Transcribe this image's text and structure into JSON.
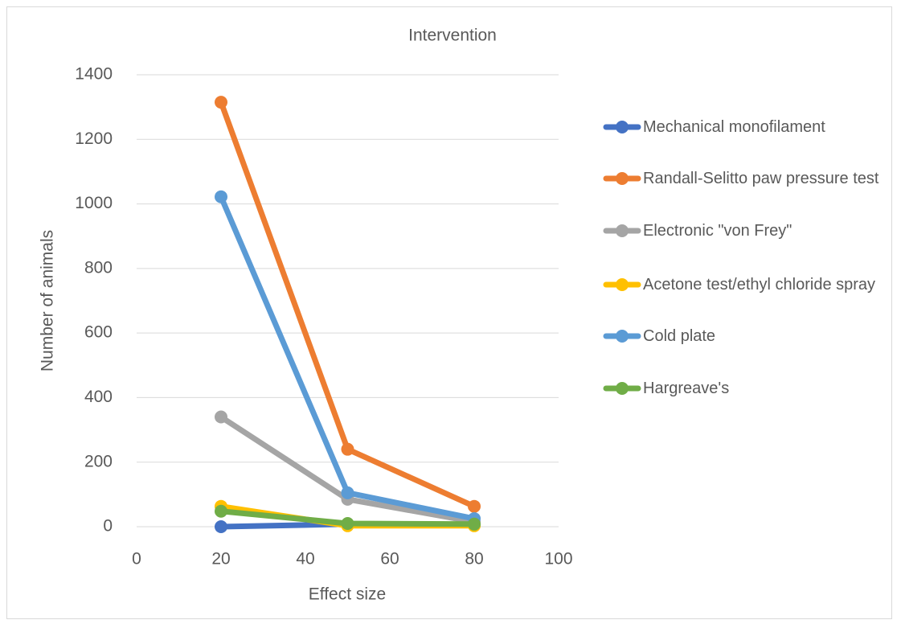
{
  "chart_data": {
    "type": "line",
    "title": "Intervention",
    "x_label": "Effect size",
    "y_label": "Number of animals",
    "x": [
      20,
      50,
      80
    ],
    "series": [
      {
        "name": "Mechanical monofilament",
        "color": "#4472c4",
        "values": [
          0,
          8,
          5
        ]
      },
      {
        "name": "Randall-Selitto paw pressure test",
        "color": "#ed7d31",
        "values": [
          1315,
          240,
          63
        ]
      },
      {
        "name": "Electronic \"von Frey\"",
        "color": "#a5a5a5",
        "values": [
          340,
          85,
          15
        ]
      },
      {
        "name": "Acetone test/ethyl chloride spray",
        "color": "#ffc000",
        "values": [
          63,
          3,
          3
        ]
      },
      {
        "name": "Cold plate",
        "color": "#5b9bd5",
        "values": [
          1022,
          105,
          25
        ]
      },
      {
        "name": "Hargreave's",
        "color": "#70ad47",
        "values": [
          48,
          10,
          8
        ]
      }
    ],
    "xlim": [
      0,
      100
    ],
    "xticks": [
      0,
      20,
      40,
      60,
      80,
      100
    ],
    "ylim": [
      0,
      1400
    ],
    "yticks": [
      0,
      200,
      400,
      600,
      800,
      1000,
      1200,
      1400
    ],
    "grid": true,
    "legend": "right"
  }
}
